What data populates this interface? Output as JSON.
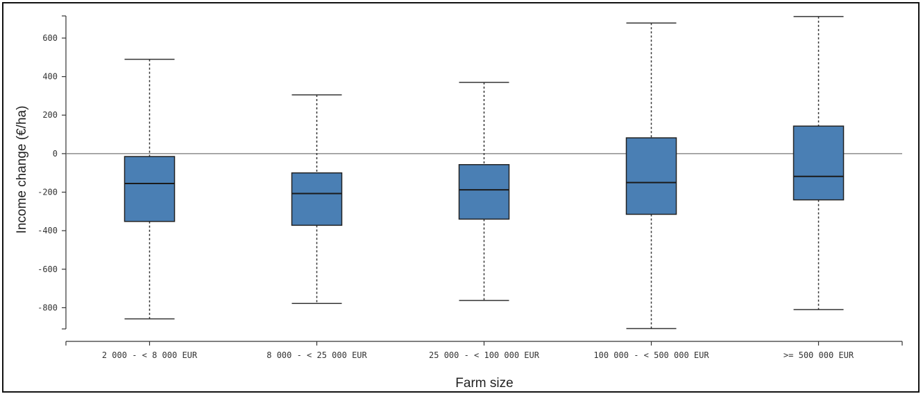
{
  "chart_data": {
    "type": "boxplot",
    "xlabel": "Farm size",
    "ylabel": "Income change (€/ha)",
    "ylim": [
      -910,
      715
    ],
    "yticks": [
      600,
      400,
      200,
      0,
      -200,
      -400,
      -600,
      -800
    ],
    "ytick_labels": [
      "600",
      "400",
      "200",
      "0",
      "-200",
      "-400",
      "-600",
      "-800"
    ],
    "reference_line": 0,
    "box_color": "#4a7fb4",
    "categories": [
      "2 000 - < 8 000 EUR",
      "8 000 - < 25 000 EUR",
      "25 000 - < 100 000 EUR",
      "100 000 - < 500 000 EUR",
      ">= 500 000 EUR"
    ],
    "boxes": [
      {
        "whisker_high": 490,
        "q3": -15,
        "median": -155,
        "q1": -352,
        "whisker_low": -858
      },
      {
        "whisker_high": 305,
        "q3": -100,
        "median": -207,
        "q1": -372,
        "whisker_low": -778
      },
      {
        "whisker_high": 370,
        "q3": -57,
        "median": -188,
        "q1": -340,
        "whisker_low": -762
      },
      {
        "whisker_high": 678,
        "q3": 82,
        "median": -150,
        "q1": -315,
        "whisker_low": -908
      },
      {
        "whisker_high": 712,
        "q3": 143,
        "median": -118,
        "q1": -240,
        "whisker_low": -810
      }
    ],
    "grid": false,
    "legend": "none"
  }
}
